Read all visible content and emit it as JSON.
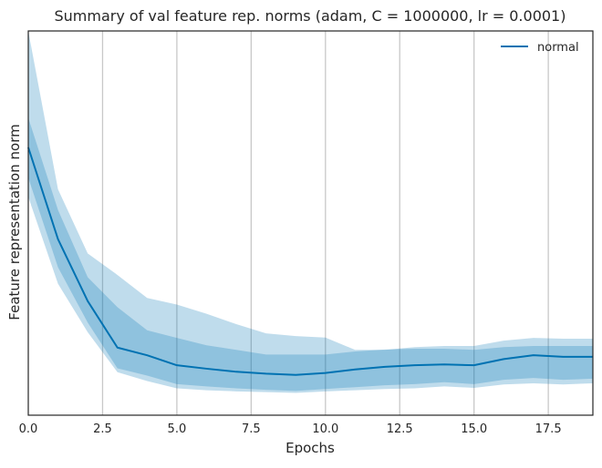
{
  "chart_data": {
    "type": "line",
    "title": "Summary of val feature rep. norms (adam, C = 1000000, lr = 0.0001)",
    "xlabel": "Epochs",
    "ylabel": "Feature representation norm",
    "xlim": [
      0,
      19
    ],
    "ylim": [
      0,
      1
    ],
    "y_ticks_shown": false,
    "grid": "vertical",
    "legend_position": "top-right",
    "x_ticks": [
      "0.0",
      "2.5",
      "5.0",
      "7.5",
      "10.0",
      "12.5",
      "15.0",
      "17.5"
    ],
    "x": [
      0,
      1,
      2,
      3,
      4,
      5,
      6,
      7,
      8,
      9,
      10,
      11,
      12,
      13,
      14,
      15,
      16,
      17,
      18,
      19
    ],
    "series": [
      {
        "name": "normal",
        "color": "#0072b2",
        "mean": [
          0.697,
          0.458,
          0.297,
          0.176,
          0.156,
          0.13,
          0.121,
          0.113,
          0.108,
          0.105,
          0.11,
          0.119,
          0.126,
          0.13,
          0.132,
          0.13,
          0.146,
          0.156,
          0.152,
          0.152
        ],
        "inner_lo": [
          0.618,
          0.385,
          0.241,
          0.122,
          0.103,
          0.081,
          0.075,
          0.07,
          0.066,
          0.063,
          0.068,
          0.073,
          0.078,
          0.081,
          0.086,
          0.081,
          0.092,
          0.097,
          0.092,
          0.095
        ],
        "inner_hi": [
          0.774,
          0.534,
          0.359,
          0.281,
          0.221,
          0.201,
          0.182,
          0.17,
          0.158,
          0.158,
          0.158,
          0.166,
          0.171,
          0.173,
          0.173,
          0.17,
          0.177,
          0.18,
          0.18,
          0.18
        ],
        "outer_lo": [
          0.568,
          0.342,
          0.216,
          0.112,
          0.089,
          0.07,
          0.065,
          0.062,
          0.06,
          0.058,
          0.062,
          0.065,
          0.068,
          0.07,
          0.075,
          0.071,
          0.08,
          0.083,
          0.08,
          0.083
        ],
        "outer_hi": [
          1.0,
          0.588,
          0.421,
          0.365,
          0.305,
          0.288,
          0.264,
          0.237,
          0.213,
          0.206,
          0.202,
          0.17,
          0.17,
          0.177,
          0.18,
          0.18,
          0.194,
          0.201,
          0.199,
          0.199
        ]
      }
    ]
  }
}
